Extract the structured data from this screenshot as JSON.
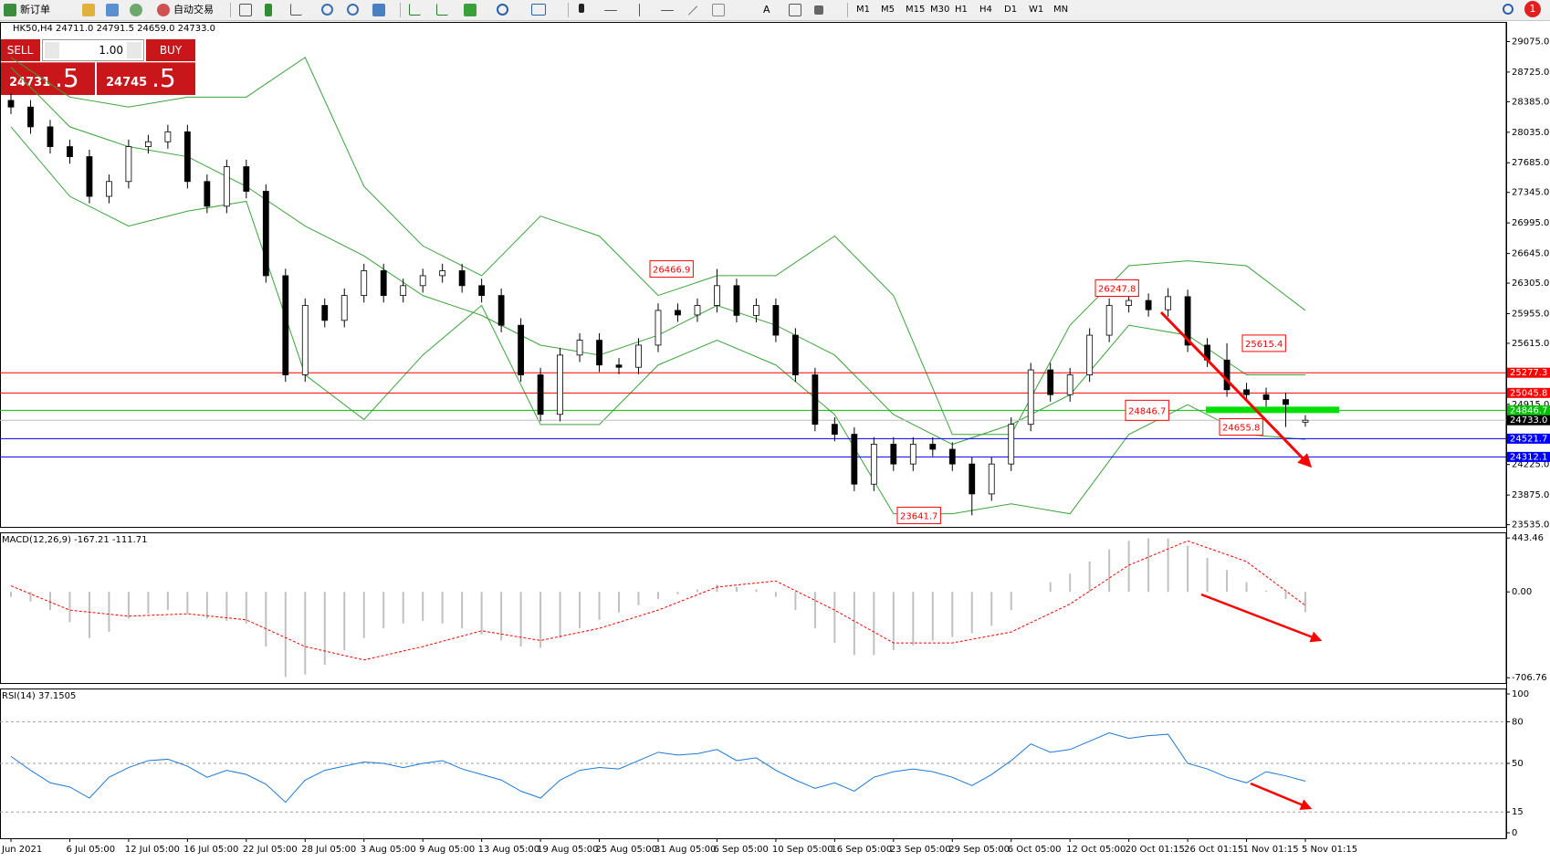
{
  "toolbar": {
    "new_order": "新订单",
    "auto_trading": "自动交易",
    "timeframes": [
      "M1",
      "M5",
      "M15",
      "M30",
      "H1",
      "H4",
      "D1",
      "W1",
      "MN"
    ],
    "notifications": "1"
  },
  "trade_panel": {
    "sell": "SELL",
    "buy": "BUY",
    "lots": "1.00",
    "bid_main": "24731",
    "bid_frac": ".5",
    "ask_main": "24745",
    "ask_frac": ".5"
  },
  "chart_data": [
    {
      "type": "candlestick",
      "title": "HK50,H4  24711.0 24791.5 24659.0 24733.0",
      "up_color": "#ffffff",
      "down_color": "#000000",
      "band_color": "#3ca33c",
      "ohlc": [
        [
          28400,
          28480,
          28244,
          28324
        ],
        [
          28324,
          28404,
          28017,
          28097
        ],
        [
          28097,
          28177,
          27790,
          27870
        ],
        [
          27870,
          27950,
          27675,
          27755
        ],
        [
          27755,
          27835,
          27220,
          27300
        ],
        [
          27300,
          27550,
          27220,
          27470
        ],
        [
          27470,
          27950,
          27390,
          27870
        ],
        [
          27870,
          28006,
          27790,
          27926
        ],
        [
          27926,
          28120,
          27846,
          28040
        ],
        [
          28040,
          28120,
          27390,
          27470
        ],
        [
          27470,
          27550,
          27107,
          27187
        ],
        [
          27187,
          27720,
          27107,
          27640
        ],
        [
          27640,
          27720,
          27278,
          27358
        ],
        [
          27358,
          27438,
          26310,
          26390
        ],
        [
          26390,
          26470,
          25173,
          25253
        ],
        [
          25253,
          26129,
          25173,
          26049
        ],
        [
          26049,
          26129,
          25798,
          25878
        ],
        [
          25878,
          26243,
          25798,
          26163
        ],
        [
          26163,
          26527,
          26083,
          26447
        ],
        [
          26447,
          26527,
          26083,
          26163
        ],
        [
          26163,
          26356,
          26083,
          26276
        ],
        [
          26276,
          26470,
          26196,
          26390
        ],
        [
          26390,
          26527,
          26310,
          26447
        ],
        [
          26447,
          26527,
          26196,
          26276
        ],
        [
          26276,
          26356,
          26083,
          26163
        ],
        [
          26163,
          26243,
          25742,
          25822
        ],
        [
          25822,
          25902,
          25173,
          25253
        ],
        [
          25253,
          25333,
          24720,
          24800
        ],
        [
          24800,
          25560,
          24720,
          25480
        ],
        [
          25480,
          25730,
          25400,
          25650
        ],
        [
          25650,
          25730,
          25286,
          25366
        ],
        [
          25366,
          25446,
          25260,
          25340
        ],
        [
          25340,
          25674,
          25260,
          25594
        ],
        [
          25594,
          26072,
          25514,
          25992
        ],
        [
          25992,
          26072,
          25860,
          25940
        ],
        [
          25940,
          26129,
          25860,
          26049
        ],
        [
          26049,
          26466.9,
          25969,
          26276
        ],
        [
          26276,
          26356,
          25855,
          25935
        ],
        [
          25935,
          26129,
          25855,
          26049
        ],
        [
          26049,
          26129,
          25628,
          25708
        ],
        [
          25708,
          25788,
          25173,
          25253
        ],
        [
          25253,
          25333,
          24606,
          24686
        ],
        [
          24686,
          24766,
          24492,
          24572
        ],
        [
          24572,
          24652,
          23920,
          24000
        ],
        [
          24000,
          24538,
          23920,
          24458
        ],
        [
          24458,
          24538,
          24151,
          24231
        ],
        [
          24231,
          24538,
          24151,
          24458
        ],
        [
          24458,
          24538,
          24320,
          24400
        ],
        [
          24400,
          24480,
          24151,
          24231
        ],
        [
          24231,
          24311,
          23641.7,
          23888
        ],
        [
          23888,
          24311,
          23808,
          24231
        ],
        [
          24231,
          24766,
          24151,
          24686
        ],
        [
          24686,
          25390,
          24606,
          25310
        ],
        [
          25310,
          25390,
          24946,
          25026
        ],
        [
          25026,
          25333,
          24946,
          25253
        ],
        [
          25253,
          25788,
          25173,
          25708
        ],
        [
          25708,
          26129,
          25628,
          26049
        ],
        [
          26049,
          26186,
          25969,
          26106
        ],
        [
          26106,
          26186,
          25920,
          26000
        ],
        [
          26000,
          26247.8,
          25920,
          26150
        ],
        [
          26150,
          26230,
          25514,
          25594
        ],
        [
          25594,
          25674,
          25343,
          25423
        ],
        [
          25423,
          25615.4,
          25002,
          25082
        ],
        [
          25082,
          25162,
          24946,
          25026
        ],
        [
          25026,
          25106,
          24890,
          24970
        ],
        [
          24970,
          25050,
          24655.8,
          24913
        ],
        [
          24711,
          24791.5,
          24659,
          24733
        ]
      ],
      "bands": {
        "upper": [
          28893,
          28438,
          28324,
          28438,
          28438,
          28893,
          27414,
          26732,
          26390,
          27073,
          26845,
          26163,
          26390,
          26390,
          26845,
          26163,
          24570,
          24570,
          25822,
          26504,
          26561,
          26504,
          25992
        ],
        "middle": [
          28779,
          28097,
          27869,
          27755,
          27414,
          26959,
          26618,
          26163,
          25935,
          25594,
          25480,
          25708,
          26049,
          25822,
          25480,
          24798,
          24456,
          24684,
          25025,
          25822,
          25708,
          25253,
          25253
        ],
        "lower": [
          28097,
          27300,
          26959,
          27130,
          27243,
          25253,
          24741,
          25480,
          26049,
          24684,
          24684,
          25366,
          25651,
          25366,
          24798,
          23660,
          23660,
          23774,
          23660,
          24570,
          24911,
          24570,
          24513
        ]
      },
      "ylim": [
        23510,
        29300
      ],
      "yticks": [
        {
          "value": 29075,
          "label": "29075.0"
        },
        {
          "value": 28725,
          "label": "28725.0"
        },
        {
          "value": 28385,
          "label": "28385.0"
        },
        {
          "value": 28035,
          "label": "28035.0"
        },
        {
          "value": 27685,
          "label": "27685.0"
        },
        {
          "value": 27345,
          "label": "27345.0"
        },
        {
          "value": 26995,
          "label": "26995.0"
        },
        {
          "value": 26645,
          "label": "26645.0"
        },
        {
          "value": 26305,
          "label": "26305.0"
        },
        {
          "value": 25955,
          "label": "25955.0"
        },
        {
          "value": 25615,
          "label": "25615.0"
        },
        {
          "value": 24915,
          "label": "24915.0"
        },
        {
          "value": 24225,
          "label": "24225.0"
        },
        {
          "value": 23875,
          "label": "23875.0"
        },
        {
          "value": 23535,
          "label": "23535.0"
        }
      ],
      "levels": [
        {
          "value": 25277.3,
          "color": "#ff0000"
        },
        {
          "value": 25045.8,
          "color": "#ff0000"
        },
        {
          "value": 24846.7,
          "color": "#00c000"
        },
        {
          "value": 24733,
          "label": "24733.0",
          "color": "#c0c0c0",
          "label_color": "#000000"
        },
        {
          "value": 24521.7,
          "color": "#0000ff"
        },
        {
          "value": 24312.1,
          "color": "#0000ff"
        }
      ],
      "annotations": [
        26466.9,
        26247.8,
        25615.4,
        24846.7,
        24655.8,
        23641.7
      ],
      "annotation_color": "#ff0000"
    },
    {
      "type": "macd",
      "title": "MACD(12,26,9) -167.21 -111.71",
      "hist_color": "#c0c0c0",
      "signal_color": "#ff0000",
      "histogram": [
        -40,
        -80,
        -150,
        -250,
        -380,
        -330,
        -220,
        -180,
        -150,
        -180,
        -220,
        -240,
        -260,
        -450,
        -700,
        -680,
        -600,
        -480,
        -380,
        -300,
        -260,
        -240,
        -260,
        -300,
        -350,
        -400,
        -450,
        -460,
        -380,
        -300,
        -230,
        -170,
        -110,
        -60,
        -20,
        20,
        60,
        40,
        20,
        -40,
        -150,
        -300,
        -420,
        -520,
        -520,
        -480,
        -440,
        -400,
        -370,
        -340,
        -280,
        -150,
        0,
        80,
        150,
        250,
        350,
        420,
        440,
        440,
        380,
        280,
        180,
        80,
        10,
        -60,
        -167.21
      ],
      "signal": [
        50,
        -150,
        -200,
        -180,
        -230,
        -450,
        -560,
        -450,
        -320,
        -400,
        -300,
        -150,
        40,
        90,
        -150,
        -420,
        -420,
        -330,
        -100,
        220,
        420,
        250,
        -111.71
      ],
      "ylim": [
        -750,
        490
      ],
      "yticks": [
        443.46,
        {
          "value": 0,
          "label": "0.00"
        },
        -706.76
      ]
    },
    {
      "type": "rsi",
      "title": "RSI(14) 37.1505",
      "color": "#1e78d2",
      "values": [
        55,
        45,
        36,
        33,
        25,
        40,
        47,
        52,
        53,
        48,
        40,
        45,
        42,
        35,
        22,
        38,
        45,
        48,
        51,
        50,
        47,
        50,
        52,
        46,
        42,
        38,
        30,
        25,
        38,
        45,
        47,
        46,
        52,
        58,
        56,
        57,
        60,
        52,
        54,
        45,
        38,
        32,
        36,
        30,
        40,
        44,
        46,
        44,
        40,
        34,
        42,
        52,
        64,
        58,
        60,
        66,
        72,
        68,
        70,
        71,
        50,
        46,
        40,
        36,
        44,
        41,
        37.1505
      ],
      "ylim": [
        0,
        100
      ],
      "yticks": [
        100,
        80,
        50,
        15,
        0
      ],
      "x_labels": [
        "Jun 2021",
        "6 Jul 05:00",
        "12 Jul 05:00",
        "16 Jul 05:00",
        "22 Jul 05:00",
        "28 Jul 05:00",
        "3 Aug 05:00",
        "9 Aug 05:00",
        "13 Aug 05:00",
        "19 Aug 05:00",
        "25 Aug 05:00",
        "31 Aug 05:00",
        "6 Sep 05:00",
        "10 Sep 05:00",
        "16 Sep 05:00",
        "23 Sep 05:00",
        "29 Sep 05:00",
        "6 Oct 05:00",
        "12 Oct 05:00",
        "20 Oct 01:15",
        "26 Oct 01:15",
        "1 Nov 01:15",
        "5 Nov 01:15"
      ]
    }
  ]
}
